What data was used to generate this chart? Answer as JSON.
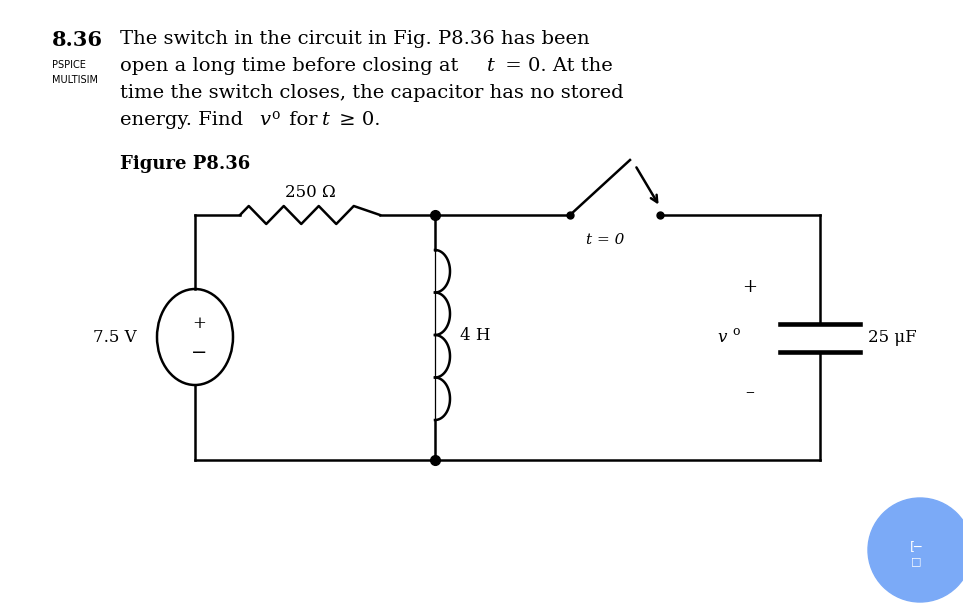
{
  "bg_color": "#ffffff",
  "text_color": "#000000",
  "problem_number": "8.36",
  "pspice_label": "PSPICE",
  "multisim_label": "MULTISIM",
  "line1": "The switch in the circuit in Fig. P8.36 has been",
  "line2a": "open a long time before closing at ",
  "line2b": " = 0. At the",
  "line3": "time the switch closes, the capacitor has no stored",
  "line4a": "energy. Find ",
  "line4b": " for ",
  "line4c": " ≥ 0.",
  "figure_label": "Figure P8.36",
  "resistor_label": "250 Ω",
  "inductor_label": "4 H",
  "capacitor_label": "25 μF",
  "source_label": "7.5 V",
  "switch_label": "t = 0",
  "lw": 1.8,
  "lc": "#000000",
  "chegg_color": "#7baaf7"
}
